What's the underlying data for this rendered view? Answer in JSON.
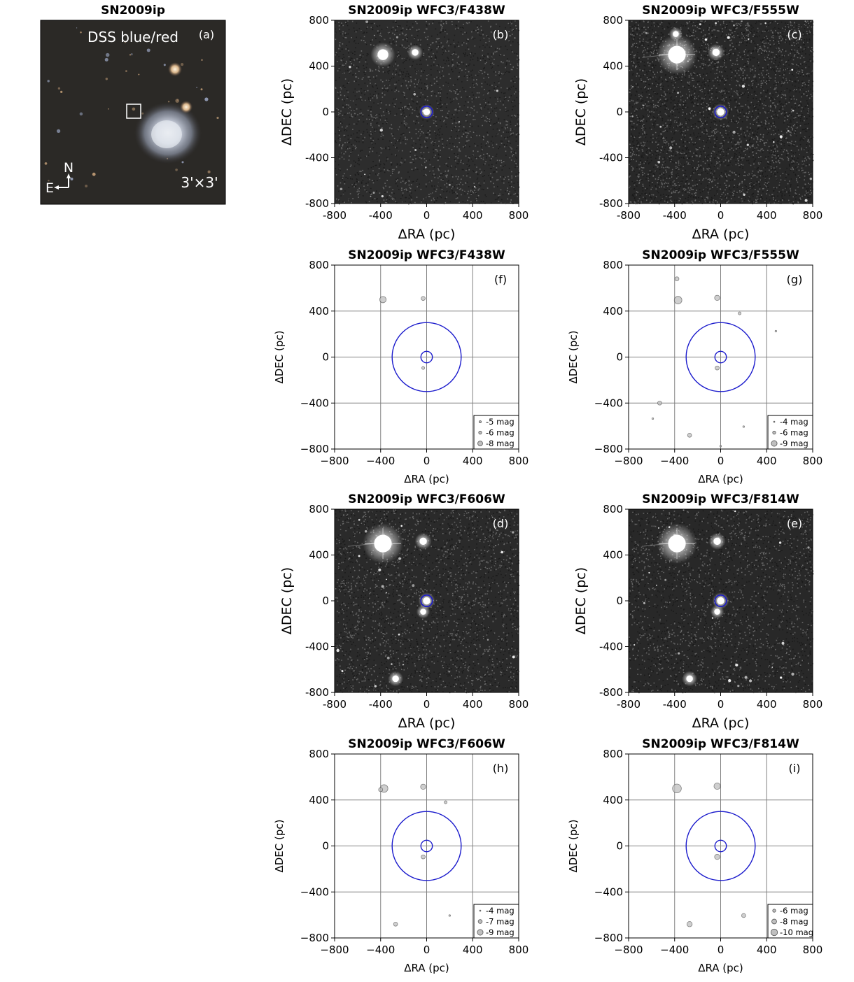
{
  "figure_title": "SN2009ip",
  "dss": {
    "label": "DSS blue/red",
    "panel": "(a)",
    "north": "N",
    "east": "E",
    "scale": "3'×3'"
  },
  "colors": {
    "circle": "#1a1acc",
    "grid": "#808080",
    "marker_fill": "#bfbfbf",
    "marker_edge": "#555555"
  },
  "chart_data": [
    {
      "id": "b",
      "type": "image",
      "title": "SN2009ip WFC3/F438W",
      "panel": "(b)",
      "xlabel": "ΔRA (pc)",
      "ylabel": "ΔDEC (pc)",
      "xlim": [
        -800,
        800
      ],
      "ylim": [
        -800,
        800
      ],
      "ticks": [
        "-800",
        "-400",
        "0",
        "400",
        "800"
      ],
      "tick_values": [
        -800,
        -400,
        0,
        400,
        800
      ],
      "circle_radius_pc": 50,
      "bright_sources": [
        {
          "x": -380,
          "y": 500,
          "size": 1
        },
        {
          "x": -100,
          "y": 520,
          "size": 0.4
        },
        {
          "x": 0,
          "y": 0,
          "size": 0.4
        }
      ],
      "seed": 11,
      "density": 0.8,
      "bg": 45
    },
    {
      "id": "c",
      "type": "image",
      "title": "SN2009ip WFC3/F555W",
      "panel": "(c)",
      "xlabel": "ΔRA (pc)",
      "ylabel": "ΔDEC (pc)",
      "xlim": [
        -800,
        800
      ],
      "ylim": [
        -800,
        800
      ],
      "ticks": [
        "-800",
        "-400",
        "0",
        "400",
        "800"
      ],
      "tick_values": [
        -800,
        -400,
        0,
        400,
        800
      ],
      "circle_radius_pc": 50,
      "bright_sources": [
        {
          "x": -380,
          "y": 500,
          "size": 2
        },
        {
          "x": -40,
          "y": 520,
          "size": 0.5
        },
        {
          "x": 0,
          "y": 0,
          "size": 0.5
        },
        {
          "x": -390,
          "y": 680,
          "size": 0.3
        }
      ],
      "seed": 23,
      "density": 1.4,
      "bg": 40
    },
    {
      "id": "f",
      "type": "scatter",
      "title": "SN2009ip WFC3/F438W",
      "panel": "(f)",
      "xlabel": "ΔRA (pc)",
      "ylabel": "ΔDEC (pc)",
      "xlim": [
        -800,
        800
      ],
      "ylim": [
        -800,
        800
      ],
      "ticks": [
        "−800",
        "−400",
        "0",
        "400",
        "800"
      ],
      "tick_values": [
        -800,
        -400,
        0,
        400,
        800
      ],
      "grid_lines": [
        -400,
        0,
        400
      ],
      "circles_pc": [
        300,
        50
      ],
      "points": [
        {
          "x": -380,
          "y": 500,
          "mag": -8
        },
        {
          "x": -30,
          "y": 510,
          "mag": -6
        },
        {
          "x": -30,
          "y": -95,
          "mag": -5
        }
      ],
      "legend": [
        {
          "label": "-5 mag",
          "mag": -5
        },
        {
          "label": "-6 mag",
          "mag": -6
        },
        {
          "label": "-8 mag",
          "mag": -8
        }
      ]
    },
    {
      "id": "g",
      "type": "scatter",
      "title": "SN2009ip WFC3/F555W",
      "panel": "(g)",
      "xlabel": "ΔRA (pc)",
      "ylabel": "ΔDEC (pc)",
      "xlim": [
        -800,
        800
      ],
      "ylim": [
        -800,
        800
      ],
      "ticks": [
        "−800",
        "−400",
        "0",
        "400",
        "800"
      ],
      "tick_values": [
        -800,
        -400,
        0,
        400,
        800
      ],
      "grid_lines": [
        -400,
        0,
        400
      ],
      "circles_pc": [
        300,
        50
      ],
      "points": [
        {
          "x": -380,
          "y": 680,
          "mag": -6
        },
        {
          "x": -370,
          "y": 495,
          "mag": -9
        },
        {
          "x": -30,
          "y": 515,
          "mag": -7
        },
        {
          "x": 165,
          "y": 380,
          "mag": -5
        },
        {
          "x": 480,
          "y": 225,
          "mag": -4
        },
        {
          "x": -30,
          "y": -95,
          "mag": -6
        },
        {
          "x": -530,
          "y": -400,
          "mag": -6
        },
        {
          "x": -590,
          "y": -535,
          "mag": -4
        },
        {
          "x": -270,
          "y": -680,
          "mag": -6
        },
        {
          "x": 200,
          "y": -605,
          "mag": -4
        },
        {
          "x": 0,
          "y": -775,
          "mag": -4
        }
      ],
      "legend": [
        {
          "label": "-4 mag",
          "mag": -4
        },
        {
          "label": "-6 mag",
          "mag": -6
        },
        {
          "label": "-9 mag",
          "mag": -9
        }
      ]
    },
    {
      "id": "d",
      "type": "image",
      "title": "SN2009ip WFC3/F606W",
      "panel": "(d)",
      "xlabel": "ΔRA (pc)",
      "ylabel": "ΔDEC (pc)",
      "xlim": [
        -800,
        800
      ],
      "ylim": [
        -800,
        800
      ],
      "ticks": [
        "-800",
        "-400",
        "0",
        "400",
        "800"
      ],
      "tick_values": [
        -800,
        -400,
        0,
        400,
        800
      ],
      "circle_radius_pc": 50,
      "bright_sources": [
        {
          "x": -380,
          "y": 500,
          "size": 2
        },
        {
          "x": -30,
          "y": 520,
          "size": 0.5
        },
        {
          "x": 0,
          "y": 0,
          "size": 0.5
        },
        {
          "x": -270,
          "y": -680,
          "size": 0.4
        },
        {
          "x": -30,
          "y": -95,
          "size": 0.3
        }
      ],
      "seed": 37,
      "density": 1.0,
      "bg": 42
    },
    {
      "id": "e",
      "type": "image",
      "title": "SN2009ip WFC3/F814W",
      "panel": "(e)",
      "xlabel": "ΔRA (pc)",
      "ylabel": "ΔDEC (pc)",
      "xlim": [
        -800,
        800
      ],
      "ylim": [
        -800,
        800
      ],
      "ticks": [
        "-800",
        "-400",
        "0",
        "400",
        "800"
      ],
      "tick_values": [
        -800,
        -400,
        0,
        400,
        800
      ],
      "circle_radius_pc": 50,
      "bright_sources": [
        {
          "x": -380,
          "y": 500,
          "size": 2
        },
        {
          "x": -30,
          "y": 520,
          "size": 0.5
        },
        {
          "x": 0,
          "y": 0,
          "size": 0.5
        },
        {
          "x": -270,
          "y": -680,
          "size": 0.4
        },
        {
          "x": -30,
          "y": -95,
          "size": 0.3
        }
      ],
      "seed": 53,
      "density": 0.9,
      "bg": 40
    },
    {
      "id": "h",
      "type": "scatter",
      "title": "SN2009ip WFC3/F606W",
      "panel": "(h)",
      "xlabel": "ΔRA (pc)",
      "ylabel": "ΔDEC (pc)",
      "xlim": [
        -800,
        800
      ],
      "ylim": [
        -800,
        800
      ],
      "ticks": [
        "−800",
        "−400",
        "0",
        "400",
        "800"
      ],
      "tick_values": [
        -800,
        -400,
        0,
        400,
        800
      ],
      "grid_lines": [
        -400,
        0,
        400
      ],
      "circles_pc": [
        300,
        50
      ],
      "points": [
        {
          "x": -370,
          "y": 500,
          "mag": -9
        },
        {
          "x": -400,
          "y": 490,
          "mag": -6
        },
        {
          "x": -30,
          "y": 515,
          "mag": -7
        },
        {
          "x": 165,
          "y": 380,
          "mag": -5
        },
        {
          "x": -30,
          "y": -95,
          "mag": -6
        },
        {
          "x": -270,
          "y": -680,
          "mag": -6
        },
        {
          "x": 200,
          "y": -605,
          "mag": -4
        }
      ],
      "legend": [
        {
          "label": "-4 mag",
          "mag": -4
        },
        {
          "label": "-7 mag",
          "mag": -7
        },
        {
          "label": "-9 mag",
          "mag": -9
        }
      ]
    },
    {
      "id": "i",
      "type": "scatter",
      "title": "SN2009ip WFC3/F814W",
      "panel": "(i)",
      "xlabel": "ΔRA (pc)",
      "ylabel": "ΔDEC (pc)",
      "xlim": [
        -800,
        800
      ],
      "ylim": [
        -800,
        800
      ],
      "ticks": [
        "−800",
        "−400",
        "0",
        "400",
        "800"
      ],
      "tick_values": [
        -800,
        -400,
        0,
        400,
        800
      ],
      "grid_lines": [
        -400,
        0,
        400
      ],
      "circles_pc": [
        300,
        50
      ],
      "points": [
        {
          "x": -380,
          "y": 500,
          "mag": -10
        },
        {
          "x": -30,
          "y": 520,
          "mag": -8
        },
        {
          "x": -30,
          "y": -95,
          "mag": -7
        },
        {
          "x": -270,
          "y": -680,
          "mag": -7
        },
        {
          "x": 200,
          "y": -605,
          "mag": -6
        }
      ],
      "legend": [
        {
          "label": "-6 mag",
          "mag": -6
        },
        {
          "label": "-8 mag",
          "mag": -8
        },
        {
          "label": "-10 mag",
          "mag": -10
        }
      ]
    }
  ]
}
